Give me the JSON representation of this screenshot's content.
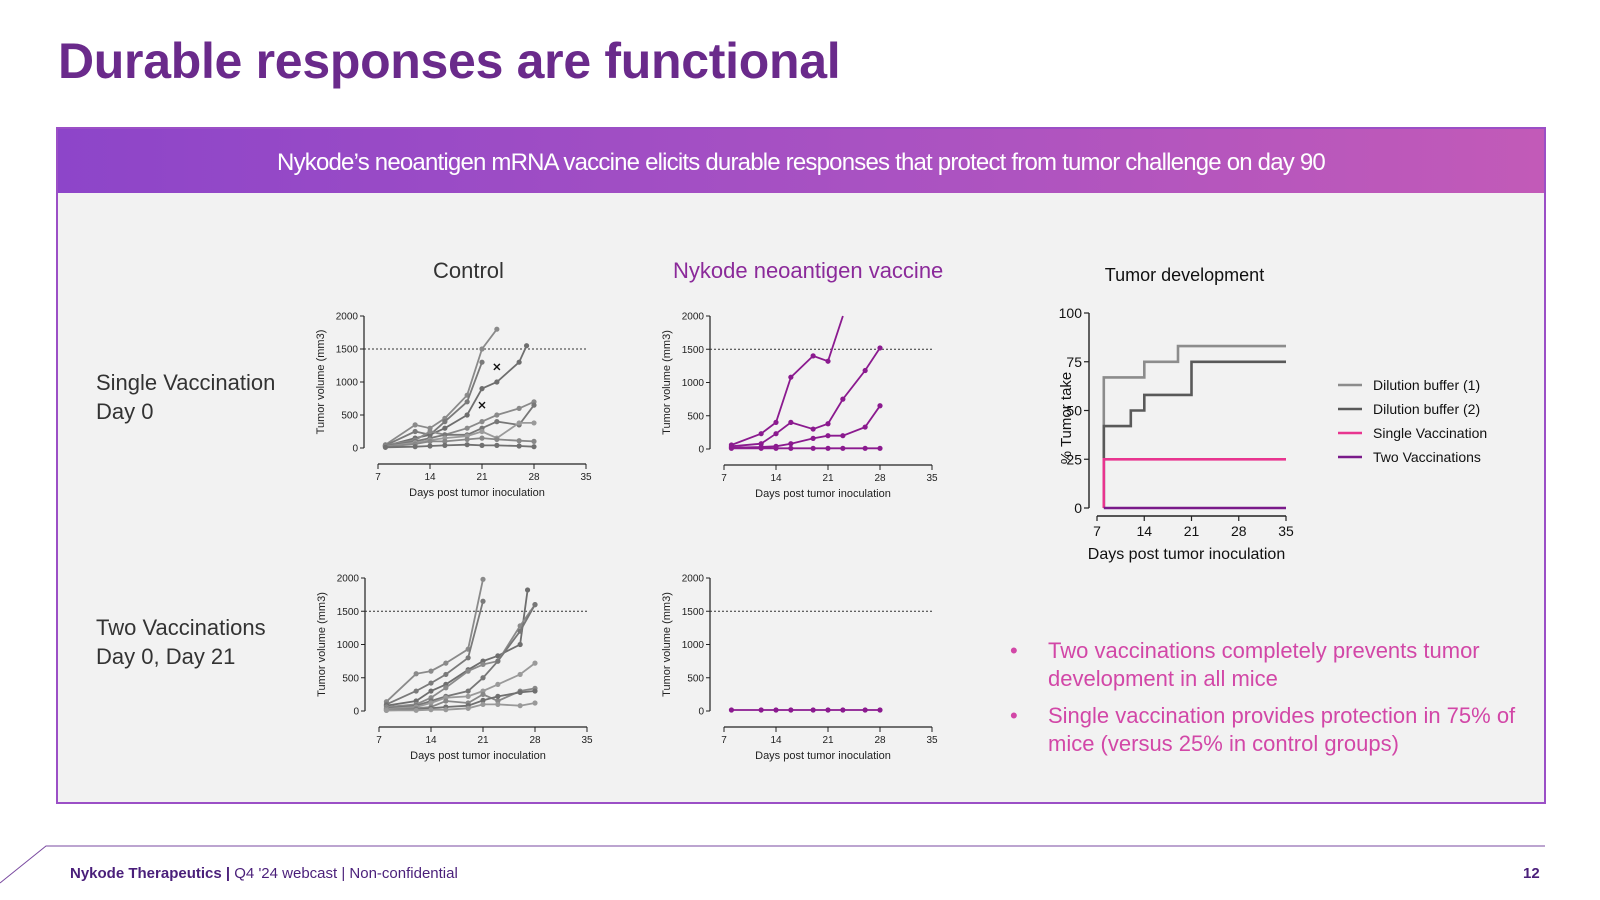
{
  "slide": {
    "title": "Durable responses are functional",
    "banner": "Nykode’s neoantigen mRNA vaccine elicits durable responses that protect from tumor challenge on day 90",
    "col_control": "Control",
    "col_vaccine": "Nykode neoantigen vaccine",
    "row1_line1": "Single Vaccination",
    "row1_line2": "Day 0",
    "row2_line1": "Two Vaccinations",
    "row2_line2": "Day 0, Day 21",
    "bullets": [
      "Two vaccinations completely prevents tumor development in all mice",
      "Single vaccination provides protection in 75% of mice (versus 25% in control groups)"
    ],
    "bullet_glyph": "•",
    "footer_company": "Nykode Therapeutics",
    "footer_sep": "|",
    "footer_rest": "Q4 '24 webcast | Non-confidential",
    "page_number": "12"
  },
  "colors": {
    "title": "#6a2a8b",
    "control_line": "#7f7f7f",
    "vaccine_line": "#8b1a8f",
    "dilution1": "#8c8c8c",
    "dilution2": "#595959",
    "single_vacc": "#e8358f",
    "two_vacc": "#7a1a8a"
  },
  "chart_data": [
    {
      "id": "control-single",
      "type": "line",
      "xlabel": "Days post tumor inoculation",
      "ylabel": "Tumor volume (mm3)",
      "xlim": [
        7,
        35
      ],
      "ylim": [
        0,
        2000
      ],
      "xticks": [
        7,
        14,
        21,
        28,
        35
      ],
      "yticks": [
        0,
        500,
        1000,
        1500,
        2000
      ],
      "threshold": 1500,
      "series": [
        {
          "x": [
            8,
            12,
            14,
            16,
            19,
            21,
            23
          ],
          "y": [
            50,
            350,
            300,
            450,
            800,
            1500,
            1800
          ]
        },
        {
          "x": [
            8,
            12,
            14,
            16,
            19,
            21
          ],
          "y": [
            40,
            250,
            200,
            400,
            700,
            1300
          ]
        },
        {
          "x": [
            8,
            12,
            14,
            16,
            19,
            21,
            23,
            26,
            27
          ],
          "y": [
            30,
            150,
            200,
            300,
            500,
            900,
            1000,
            1300,
            1550
          ]
        },
        {
          "x": [
            8,
            12,
            14,
            16,
            19,
            21,
            23,
            26,
            28
          ],
          "y": [
            40,
            120,
            250,
            200,
            300,
            400,
            500,
            600,
            700
          ]
        },
        {
          "x": [
            8,
            12,
            14,
            16,
            19,
            21,
            23,
            26,
            28
          ],
          "y": [
            30,
            100,
            150,
            200,
            200,
            300,
            400,
            350,
            650
          ]
        },
        {
          "x": [
            8,
            12,
            14,
            16,
            19,
            21,
            23,
            26,
            28
          ],
          "y": [
            20,
            80,
            120,
            150,
            180,
            250,
            150,
            380,
            380
          ]
        },
        {
          "x": [
            8,
            12,
            14,
            16,
            19,
            21,
            23,
            26,
            28
          ],
          "y": [
            20,
            60,
            100,
            100,
            130,
            150,
            130,
            110,
            100
          ]
        },
        {
          "x": [
            8,
            12,
            14,
            16,
            19,
            21,
            23,
            26,
            28
          ],
          "y": [
            10,
            20,
            30,
            40,
            50,
            40,
            40,
            30,
            20
          ]
        }
      ],
      "censored": [
        {
          "x": 21,
          "y": 650
        },
        {
          "x": 23,
          "y": 1230
        }
      ]
    },
    {
      "id": "vaccine-single",
      "type": "line",
      "xlabel": "Days post tumor inoculation",
      "ylabel": "Tumor volume (mm3)",
      "xlim": [
        7,
        35
      ],
      "ylim": [
        0,
        2000
      ],
      "xticks": [
        7,
        14,
        21,
        28,
        35
      ],
      "yticks": [
        0,
        500,
        1000,
        1500,
        2000
      ],
      "threshold": 1500,
      "series": [
        {
          "x": [
            8,
            12,
            14,
            16,
            19,
            21,
            23
          ],
          "y": [
            60,
            230,
            400,
            1080,
            1400,
            1320,
            2000
          ]
        },
        {
          "x": [
            8,
            12,
            14,
            16,
            19,
            21,
            23,
            26,
            28
          ],
          "y": [
            40,
            80,
            230,
            400,
            300,
            380,
            750,
            1180,
            1520
          ]
        },
        {
          "x": [
            8,
            12,
            14,
            16,
            19,
            21,
            23,
            26,
            28
          ],
          "y": [
            20,
            30,
            40,
            80,
            160,
            200,
            200,
            330,
            650
          ]
        },
        {
          "x": [
            8,
            12,
            14,
            16,
            19,
            21,
            23,
            26,
            28
          ],
          "y": [
            10,
            10,
            10,
            10,
            10,
            10,
            10,
            10,
            10
          ]
        }
      ]
    },
    {
      "id": "control-two",
      "type": "line",
      "xlabel": "Days post tumor inoculation",
      "ylabel": "Tumor volume (mm3)",
      "xlim": [
        7,
        35
      ],
      "ylim": [
        0,
        2000
      ],
      "xticks": [
        7,
        14,
        21,
        28,
        35
      ],
      "yticks": [
        0,
        500,
        1000,
        1500,
        2000
      ],
      "threshold": 1500,
      "series": [
        {
          "x": [
            8,
            12,
            14,
            16,
            19,
            21
          ],
          "y": [
            140,
            560,
            600,
            720,
            930,
            1980
          ]
        },
        {
          "x": [
            8,
            12,
            14,
            16,
            19,
            21
          ],
          "y": [
            100,
            300,
            420,
            550,
            800,
            1650
          ]
        },
        {
          "x": [
            8,
            12,
            14,
            16,
            19,
            21,
            23,
            26,
            27
          ],
          "y": [
            80,
            150,
            300,
            400,
            620,
            750,
            830,
            1000,
            1820
          ]
        },
        {
          "x": [
            8,
            12,
            14,
            16,
            19,
            21,
            23,
            26,
            28
          ],
          "y": [
            60,
            100,
            200,
            350,
            600,
            700,
            750,
            1280,
            1600
          ]
        },
        {
          "x": [
            8,
            12,
            14,
            16,
            19,
            21,
            23,
            26,
            28
          ],
          "y": [
            40,
            80,
            150,
            220,
            300,
            500,
            750,
            1200,
            1600
          ]
        },
        {
          "x": [
            8,
            12,
            14,
            16,
            19,
            21,
            23,
            26,
            28
          ],
          "y": [
            30,
            60,
            120,
            200,
            220,
            300,
            400,
            550,
            720
          ]
        },
        {
          "x": [
            8,
            12,
            14,
            16,
            19,
            21,
            23,
            26,
            28
          ],
          "y": [
            20,
            40,
            60,
            150,
            120,
            250,
            150,
            300,
            340
          ]
        },
        {
          "x": [
            8,
            12,
            14,
            16,
            19,
            21,
            23,
            26,
            28
          ],
          "y": [
            10,
            20,
            40,
            60,
            80,
            160,
            220,
            280,
            300
          ]
        },
        {
          "x": [
            8,
            12,
            14,
            16,
            19,
            21,
            23,
            26,
            28
          ],
          "y": [
            10,
            10,
            20,
            20,
            40,
            100,
            100,
            80,
            120
          ]
        }
      ]
    },
    {
      "id": "vaccine-two",
      "type": "line",
      "xlabel": "Days post tumor inoculation",
      "ylabel": "Tumor volume (mm3)",
      "xlim": [
        7,
        35
      ],
      "ylim": [
        0,
        2000
      ],
      "xticks": [
        7,
        14,
        21,
        28,
        35
      ],
      "yticks": [
        0,
        500,
        1000,
        1500,
        2000
      ],
      "threshold": 1500,
      "series": [
        {
          "x": [
            8,
            12,
            14,
            16,
            19,
            21,
            23,
            26,
            28
          ],
          "y": [
            15,
            15,
            15,
            15,
            15,
            15,
            15,
            15,
            15
          ]
        }
      ]
    },
    {
      "id": "tumor-development",
      "type": "line",
      "title": "Tumor development",
      "xlabel": "Days post tumor inoculation",
      "ylabel": "% Tumor take",
      "xlim": [
        7,
        35
      ],
      "ylim": [
        0,
        100
      ],
      "xticks": [
        7,
        14,
        21,
        28,
        35
      ],
      "yticks": [
        0,
        25,
        50,
        75,
        100
      ],
      "step": true,
      "series": [
        {
          "name": "Dilution buffer (1)",
          "x": [
            8,
            8,
            14,
            14,
            19,
            19,
            35
          ],
          "y": [
            0,
            67,
            67,
            75,
            75,
            83,
            83
          ]
        },
        {
          "name": "Dilution buffer (2)",
          "x": [
            8,
            8,
            12,
            12,
            14,
            14,
            21,
            21,
            35
          ],
          "y": [
            0,
            42,
            42,
            50,
            50,
            58,
            58,
            75,
            75
          ]
        },
        {
          "name": "Single Vaccination",
          "x": [
            8,
            8,
            35
          ],
          "y": [
            0,
            25,
            25
          ]
        },
        {
          "name": "Two Vaccinations",
          "x": [
            8,
            35
          ],
          "y": [
            0,
            0
          ]
        }
      ]
    }
  ]
}
